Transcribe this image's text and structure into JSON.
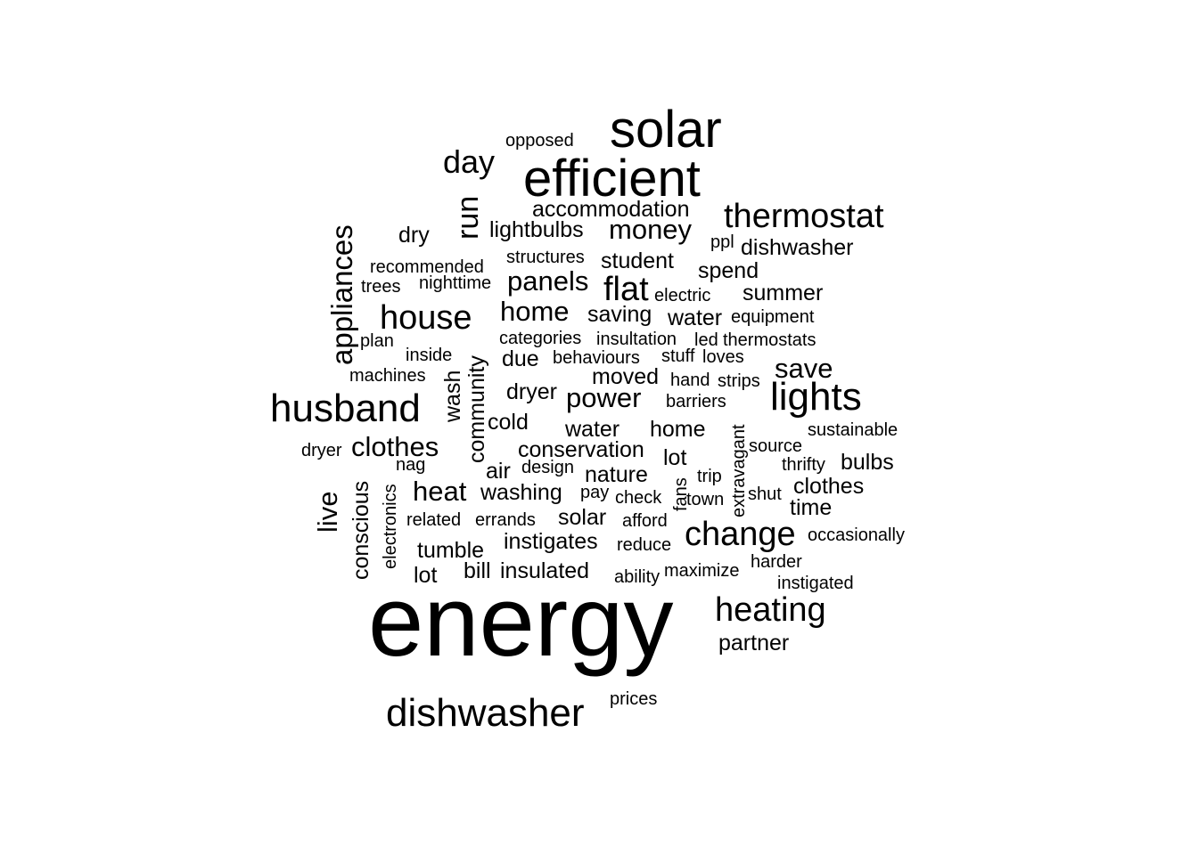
{
  "words": [
    "energy",
    "solar",
    "efficient",
    "thermostat",
    "lights",
    "husband",
    "dishwasher",
    "change",
    "heating",
    "house",
    "flat",
    "money",
    "panels",
    "home",
    "day",
    "run",
    "appliances",
    "power",
    "save",
    "heat",
    "clothes",
    "accommodation",
    "lightbulbs",
    "dishwasher",
    "student",
    "spend",
    "summer",
    "saving",
    "water",
    "equipment",
    "thermostats",
    "led",
    "insultation",
    "categories",
    "inside",
    "plan",
    "trees",
    "recommended",
    "nighttime",
    "structures",
    "opposed",
    "dry",
    "ppl",
    "electric",
    "machines",
    "wash",
    "community",
    "due",
    "behaviours",
    "stuff",
    "loves",
    "moved",
    "hand",
    "strips",
    "dryer",
    "barriers",
    "cold",
    "water",
    "home",
    "sustainable",
    "conservation",
    "lot",
    "source",
    "dryer",
    "nag",
    "design",
    "air",
    "nature",
    "trip",
    "thrifty",
    "bulbs",
    "live",
    "conscious",
    "electronics",
    "washing",
    "pay",
    "check",
    "fans",
    "town",
    "extravagant",
    "shut",
    "clothes",
    "time",
    "related",
    "errands",
    "solar",
    "afford",
    "occasionally",
    "tumble",
    "instigates",
    "reduce",
    "lot",
    "bill",
    "insulated",
    "ability",
    "maximize",
    "harder",
    "instigated",
    "partner",
    "prices"
  ]
}
